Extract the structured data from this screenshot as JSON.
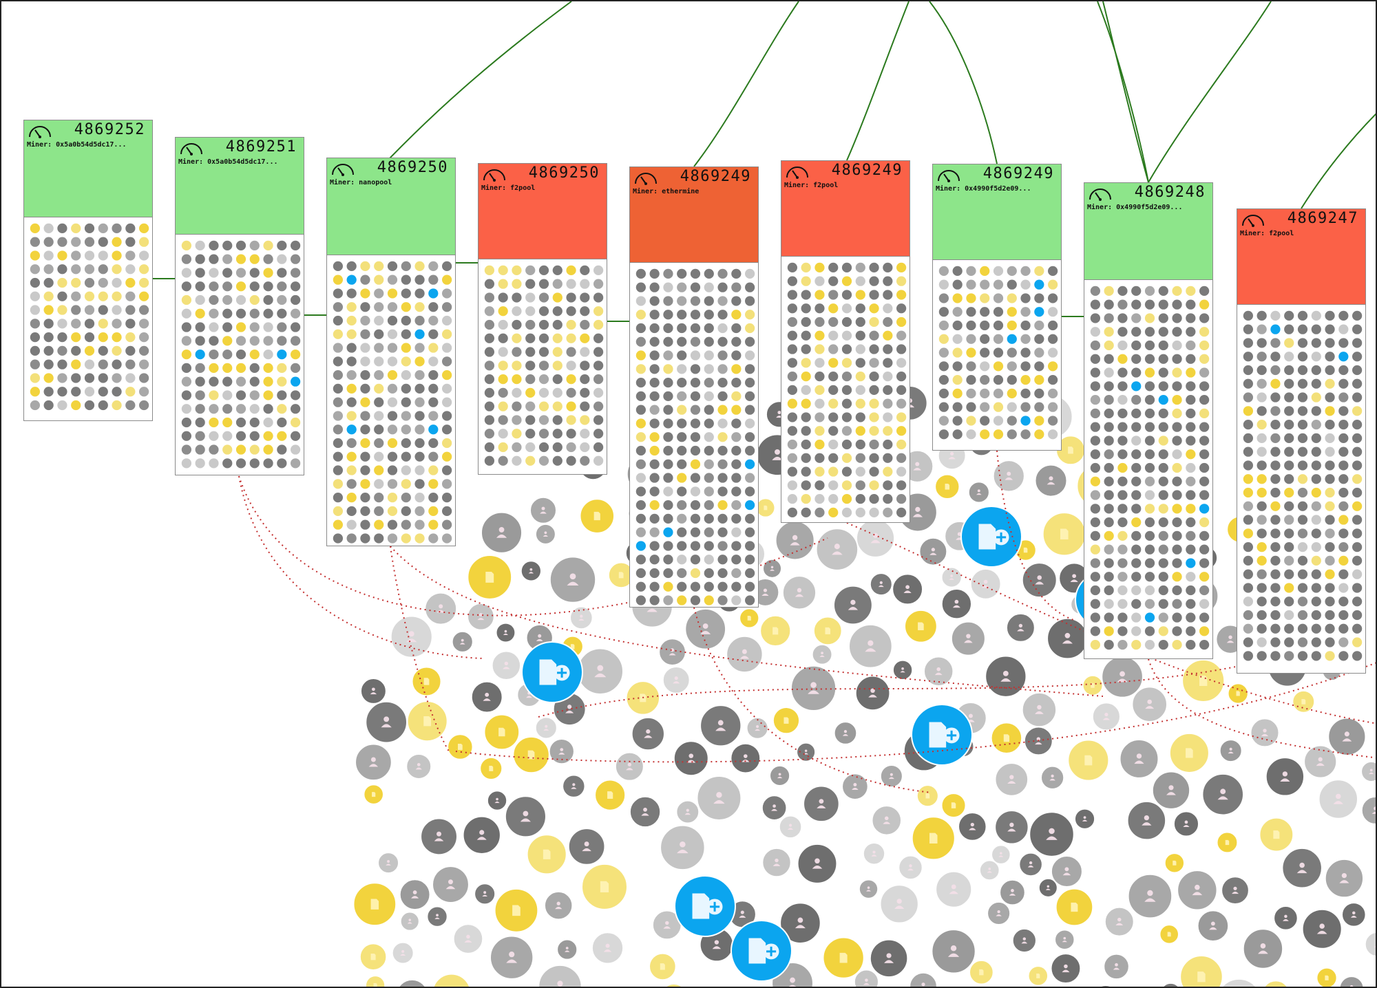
{
  "view": "blockchain-transaction-visualizer",
  "colors": {
    "uncle_block_header": "#8de58a",
    "main_block_header": "#fb6147",
    "highlighted_block_header": "#ee6234",
    "tx_confirmed_yellow": "#f2d33d",
    "tx_grey": "#a8a8a8",
    "tx_dark": "#7a7a7a",
    "contract_blue": "#0ba5ef",
    "chain_link": "#2b7a1e",
    "pending_link": "#c43030"
  },
  "icons": {
    "block": "gauge-icon",
    "wallet_tx": "user-icon",
    "token_tx": "document-icon",
    "contract_creation": "document-plus-icon"
  },
  "blocks": [
    {
      "number": "4869252",
      "miner_label": "Miner: 0x5a0b54d5dc17...",
      "status": "uncle"
    },
    {
      "number": "4869251",
      "miner_label": "Miner: 0x5a0b54d5dc17...",
      "status": "uncle"
    },
    {
      "number": "4869250",
      "miner_label": "Miner: nanopool",
      "status": "uncle"
    },
    {
      "number": "4869250",
      "miner_label": "Miner: f2pool",
      "status": "main"
    },
    {
      "number": "4869249",
      "miner_label": "Miner: ethermine",
      "status": "highlighted"
    },
    {
      "number": "4869249",
      "miner_label": "Miner: f2pool",
      "status": "main"
    },
    {
      "number": "4869249",
      "miner_label": "Miner: 0x4990f5d2e09...",
      "status": "uncle"
    },
    {
      "number": "4869248",
      "miner_label": "Miner: 0x4990f5d2e09...",
      "status": "uncle"
    },
    {
      "number": "4869247",
      "miner_label": "Miner: f2pool",
      "status": "main"
    }
  ]
}
